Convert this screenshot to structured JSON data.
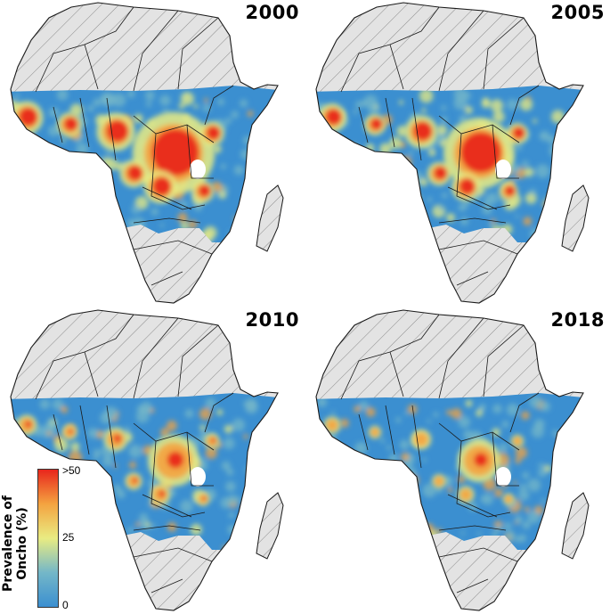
{
  "colors": {
    "low": "#3b8fd0",
    "mid_low": "#74b7c8",
    "mid": "#e9ec82",
    "mid_high": "#f4a340",
    "high": "#e8261c",
    "excluded": "#e3e3e3",
    "hatch": "#8a8a8a",
    "border": "#1a1a1a"
  },
  "panels": [
    {
      "year": "2000",
      "hotspot_level": 1.0
    },
    {
      "year": "2005",
      "hotspot_level": 0.8
    },
    {
      "year": "2010",
      "hotspot_level": 0.45
    },
    {
      "year": "2018",
      "hotspot_level": 0.3
    }
  ],
  "legend": {
    "title_line1": "Prevalence of",
    "title_line2": "Oncho (%)",
    "ticks": [
      ">50",
      "25",
      "0"
    ]
  }
}
